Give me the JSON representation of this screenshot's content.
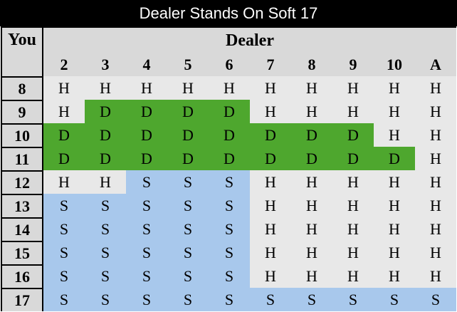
{
  "title": "Dealer Stands On Soft 17",
  "row_header_label": "You",
  "col_header_label": "Dealer",
  "columns": [
    "2",
    "3",
    "4",
    "5",
    "6",
    "7",
    "8",
    "9",
    "10",
    "A"
  ],
  "rows": [
    {
      "hand": "8",
      "actions": [
        "H",
        "H",
        "H",
        "H",
        "H",
        "H",
        "H",
        "H",
        "H",
        "H"
      ]
    },
    {
      "hand": "9",
      "actions": [
        "H",
        "D",
        "D",
        "D",
        "D",
        "H",
        "H",
        "H",
        "H",
        "H"
      ]
    },
    {
      "hand": "10",
      "actions": [
        "D",
        "D",
        "D",
        "D",
        "D",
        "D",
        "D",
        "D",
        "H",
        "H"
      ]
    },
    {
      "hand": "11",
      "actions": [
        "D",
        "D",
        "D",
        "D",
        "D",
        "D",
        "D",
        "D",
        "D",
        "H"
      ]
    },
    {
      "hand": "12",
      "actions": [
        "H",
        "H",
        "S",
        "S",
        "S",
        "H",
        "H",
        "H",
        "H",
        "H"
      ]
    },
    {
      "hand": "13",
      "actions": [
        "S",
        "S",
        "S",
        "S",
        "S",
        "H",
        "H",
        "H",
        "H",
        "H"
      ]
    },
    {
      "hand": "14",
      "actions": [
        "S",
        "S",
        "S",
        "S",
        "S",
        "H",
        "H",
        "H",
        "H",
        "H"
      ]
    },
    {
      "hand": "15",
      "actions": [
        "S",
        "S",
        "S",
        "S",
        "S",
        "H",
        "H",
        "H",
        "H",
        "H"
      ]
    },
    {
      "hand": "16",
      "actions": [
        "S",
        "S",
        "S",
        "S",
        "S",
        "H",
        "H",
        "H",
        "H",
        "H"
      ]
    },
    {
      "hand": "17",
      "actions": [
        "S",
        "S",
        "S",
        "S",
        "S",
        "S",
        "S",
        "S",
        "S",
        "S"
      ]
    }
  ],
  "colors": {
    "H": "#e8e8e8",
    "D": "#4ea72e",
    "S": "#a8c8ec",
    "header": "#d9d9d9"
  }
}
